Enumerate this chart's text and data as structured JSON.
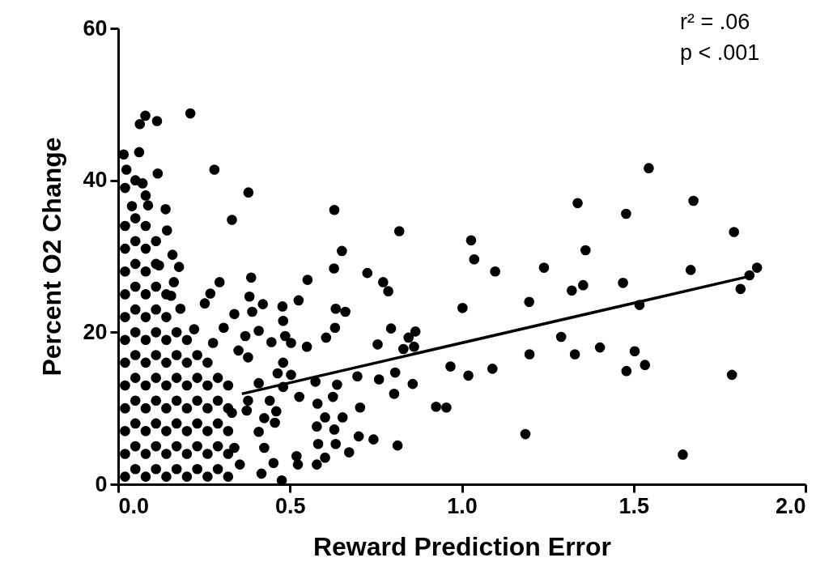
{
  "chart_data": {
    "type": "scatter",
    "xlabel": "Reward Prediction Error",
    "ylabel": "Percent O2 Change",
    "annotations": [
      "r² = .06",
      "p < .001"
    ],
    "xlim": [
      0,
      2
    ],
    "ylim": [
      0,
      60
    ],
    "xticks": [
      {
        "value": 0,
        "label": "0.0"
      },
      {
        "value": 0.5,
        "label": "0.5"
      },
      {
        "value": 1,
        "label": "1.0"
      },
      {
        "value": 1.5,
        "label": "1.5"
      },
      {
        "value": 2,
        "label": "2.0"
      }
    ],
    "yticks": [
      0,
      20,
      40,
      60
    ],
    "grid": false,
    "series": [
      {
        "color": "#000000",
        "marker": "circle",
        "x": [
          1.544,
          1.674,
          1.337,
          1.478,
          0.818,
          1.792,
          1.027,
          1.36,
          1.036,
          1.097,
          1.239,
          1.859,
          1.837,
          1.666,
          1.811,
          1.469,
          1.353,
          1.32,
          1.196,
          1.517,
          1.002,
          0.794,
          0.865,
          0.845,
          0.83,
          0.861,
          1.289,
          1.197,
          1.329,
          1.402,
          1.503,
          1.533,
          1.479,
          0.967,
          1.089,
          1.019,
          1.786,
          0.806,
          0.857,
          0.803,
          0.925,
          0.955,
          1.185,
          0.813,
          1.643,
          0.079,
          0.063,
          0.113,
          0.21,
          0.016,
          0.061,
          0.115,
          0.28,
          0.379,
          0.024,
          0.071,
          0.138,
          0.331,
          0.629,
          0.651,
          0.628,
          0.725,
          0.771,
          0.786,
          0.551,
          0.387,
          0.295,
          0.268,
          0.252,
          0.382,
          0.525,
          0.421,
          0.478,
          0.39,
          0.338,
          0.633,
          0.661,
          0.48,
          0.631,
          0.605,
          0.549,
          0.755,
          0.503,
          0.446,
          0.486,
          0.37,
          0.409,
          0.307,
          0.221,
          0.276,
          0.35,
          0.378,
          0.48,
          0.464,
          0.503,
          0.696,
          0.759,
          0.574,
          0.637,
          0.527,
          0.625,
          0.58,
          0.704,
          0.48,
          0.409,
          0.378,
          0.441,
          0.374,
          0.46,
          0.331,
          0.425,
          0.456,
          0.578,
          0.602,
          0.653,
          0.629,
          0.409,
          0.582,
          0.633,
          0.7,
          0.743,
          0.672,
          0.602,
          0.578,
          0.519,
          0.523,
          0.452,
          0.425,
          0.338,
          0.417,
          0.476,
          0.354,
          0.158,
          0.177,
          0.162,
          0.154,
          0.181,
          0.142,
          0.119,
          0.087,
          0.04,
          0.02,
          0.02,
          0.02,
          0.02,
          0.02,
          0.02,
          0.02,
          0.02,
          0.02,
          0.02,
          0.02,
          0.02,
          0.02,
          0.05,
          0.05,
          0.05,
          0.05,
          0.05,
          0.05,
          0.05,
          0.05,
          0.05,
          0.05,
          0.05,
          0.05,
          0.05,
          0.08,
          0.08,
          0.08,
          0.08,
          0.08,
          0.08,
          0.08,
          0.08,
          0.08,
          0.08,
          0.08,
          0.08,
          0.08,
          0.11,
          0.11,
          0.11,
          0.11,
          0.11,
          0.11,
          0.11,
          0.11,
          0.11,
          0.11,
          0.11,
          0.14,
          0.14,
          0.14,
          0.14,
          0.14,
          0.14,
          0.14,
          0.14,
          0.14,
          0.17,
          0.17,
          0.17,
          0.17,
          0.17,
          0.17,
          0.17,
          0.2,
          0.2,
          0.2,
          0.2,
          0.2,
          0.2,
          0.2,
          0.23,
          0.23,
          0.23,
          0.23,
          0.23,
          0.23,
          0.26,
          0.26,
          0.26,
          0.26,
          0.26,
          0.26,
          0.29,
          0.29,
          0.29,
          0.29,
          0.29,
          0.32,
          0.32,
          0.32,
          0.32,
          0.32
        ],
        "values": [
          41.6,
          37.3,
          37.0,
          35.6,
          33.3,
          33.2,
          32.1,
          30.8,
          29.6,
          28.0,
          28.5,
          28.5,
          27.5,
          28.2,
          25.7,
          26.5,
          26.2,
          25.5,
          24.0,
          23.6,
          23.2,
          20.5,
          20.1,
          19.3,
          17.8,
          18.1,
          19.4,
          17.1,
          17.1,
          18.0,
          17.5,
          15.7,
          14.9,
          15.5,
          15.2,
          14.3,
          14.4,
          14.7,
          13.2,
          11.9,
          10.2,
          10.1,
          6.6,
          5.1,
          3.9,
          48.5,
          47.4,
          47.8,
          48.8,
          43.4,
          43.7,
          40.9,
          41.4,
          38.4,
          41.4,
          39.6,
          36.2,
          34.8,
          36.1,
          30.7,
          28.4,
          27.8,
          26.6,
          25.4,
          26.9,
          27.2,
          26.6,
          25.1,
          23.8,
          24.7,
          24.2,
          23.7,
          23.4,
          22.7,
          22.4,
          23.1,
          22.7,
          21.5,
          20.6,
          19.3,
          18.1,
          18.4,
          18.6,
          18.7,
          19.5,
          19.5,
          20.2,
          20.6,
          20.4,
          18.6,
          17.6,
          16.7,
          16.0,
          14.6,
          14.4,
          14.2,
          13.8,
          13.5,
          13.1,
          11.5,
          11.5,
          10.6,
          10.1,
          12.8,
          13.3,
          11.0,
          11.0,
          9.7,
          9.6,
          9.4,
          8.7,
          8.1,
          7.6,
          8.8,
          8.8,
          7.2,
          6.9,
          5.3,
          5.3,
          6.3,
          5.9,
          4.2,
          3.5,
          2.6,
          3.7,
          2.6,
          2.8,
          4.8,
          4.8,
          1.4,
          0.5,
          2.6,
          30.2,
          28.6,
          26.6,
          24.8,
          23.1,
          33.4,
          28.8,
          36.7,
          36.6,
          1,
          4,
          7,
          10,
          13,
          16,
          19,
          22,
          25,
          28,
          31,
          34,
          39,
          2,
          5,
          8,
          11,
          14,
          17,
          20,
          23,
          26,
          29,
          32,
          35,
          40,
          1,
          4,
          7,
          10,
          13,
          16,
          19,
          22,
          25,
          28,
          31,
          34,
          38,
          2,
          5,
          8,
          11,
          14,
          17,
          20,
          23,
          26,
          29,
          32,
          1,
          4,
          7,
          10,
          13,
          16,
          19,
          22,
          25,
          2,
          5,
          8,
          11,
          14,
          17,
          20,
          1,
          4,
          7,
          10,
          13,
          16,
          19,
          2,
          5,
          8,
          11,
          14,
          17,
          1,
          4,
          7,
          10,
          13,
          16,
          2,
          5,
          8,
          11,
          14,
          1,
          4,
          7,
          10,
          13
        ]
      },
      {
        "type": "line",
        "color": "#000000",
        "x": [
          0.36,
          1.83
        ],
        "values": [
          11.9,
          27.3
        ]
      }
    ]
  }
}
